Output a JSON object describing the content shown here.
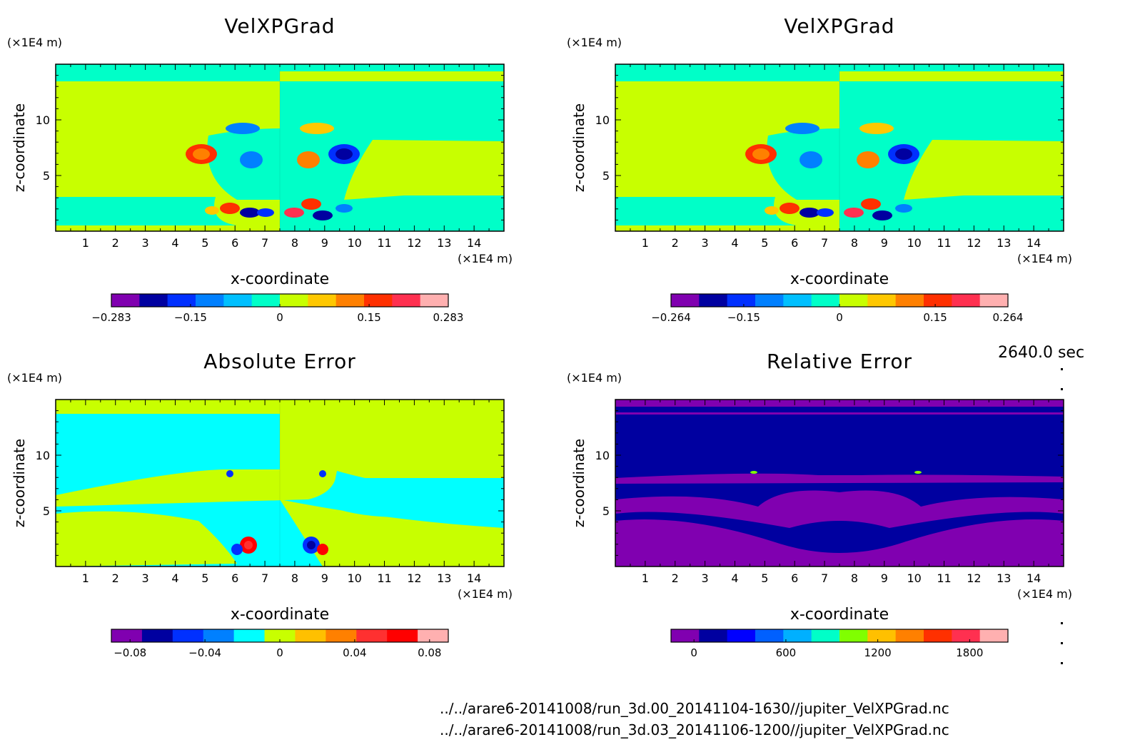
{
  "chart_data": [
    {
      "type": "heatmap",
      "title": "VelXPGrad",
      "xlabel": "x-coordinate",
      "ylabel": "z-coordinate",
      "x_unit": "(×1E4 m)",
      "y_unit": "(×1E4 m)",
      "xlim": [
        0,
        15
      ],
      "ylim": [
        0,
        15
      ],
      "x_ticks": [
        1,
        2,
        3,
        4,
        5,
        6,
        7,
        8,
        9,
        10,
        11,
        12,
        13,
        14
      ],
      "y_ticks": [
        5,
        10
      ],
      "colorbar": {
        "min": -0.283,
        "max": 0.283,
        "tick_labels": [
          "-0.283",
          "-0.15",
          "0",
          "0.15",
          "0.283"
        ],
        "colors": [
          "#8000b0",
          "#0000a0",
          "#0030ff",
          "#0080ff",
          "#00c0ff",
          "#00ffc8",
          "#c8ff00",
          "#ffc800",
          "#ff8000",
          "#ff3000",
          "#ff3050",
          "#ffb0b0"
        ]
      }
    },
    {
      "type": "heatmap",
      "title": "VelXPGrad",
      "xlabel": "x-coordinate",
      "ylabel": "z-coordinate",
      "x_unit": "(×1E4 m)",
      "y_unit": "(×1E4 m)",
      "xlim": [
        0,
        15
      ],
      "ylim": [
        0,
        15
      ],
      "x_ticks": [
        1,
        2,
        3,
        4,
        5,
        6,
        7,
        8,
        9,
        10,
        11,
        12,
        13,
        14
      ],
      "y_ticks": [
        5,
        10
      ],
      "colorbar": {
        "min": -0.264,
        "max": 0.264,
        "tick_labels": [
          "-0.264",
          "-0.15",
          "0",
          "0.15",
          "0.264"
        ],
        "colors": [
          "#8000b0",
          "#0000a0",
          "#0030ff",
          "#0080ff",
          "#00c0ff",
          "#00ffc8",
          "#c8ff00",
          "#ffc800",
          "#ff8000",
          "#ff3000",
          "#ff3050",
          "#ffb0b0"
        ]
      }
    },
    {
      "type": "heatmap",
      "title": "Absolute Error",
      "xlabel": "x-coordinate",
      "ylabel": "z-coordinate",
      "x_unit": "(×1E4 m)",
      "y_unit": "(×1E4 m)",
      "xlim": [
        0,
        15
      ],
      "ylim": [
        0,
        15
      ],
      "x_ticks": [
        1,
        2,
        3,
        4,
        5,
        6,
        7,
        8,
        9,
        10,
        11,
        12,
        13,
        14
      ],
      "y_ticks": [
        5,
        10
      ],
      "colorbar": {
        "min": -0.09,
        "max": 0.09,
        "tick_labels": [
          "-0.08",
          "-0.04",
          "0",
          "0.04",
          "0.08"
        ],
        "colors": [
          "#8000b0",
          "#0000a0",
          "#0030ff",
          "#0080ff",
          "#00ffff",
          "#c8ff00",
          "#ffc000",
          "#ff8000",
          "#ff3030",
          "#ff0000",
          "#ffb0b0"
        ]
      }
    },
    {
      "type": "heatmap",
      "title": "Relative Error",
      "xlabel": "x-coordinate",
      "ylabel": "z-coordinate",
      "x_unit": "(×1E4 m)",
      "y_unit": "(×1E4 m)",
      "xlim": [
        0,
        15
      ],
      "ylim": [
        0,
        15
      ],
      "x_ticks": [
        1,
        2,
        3,
        4,
        5,
        6,
        7,
        8,
        9,
        10,
        11,
        12,
        13,
        14
      ],
      "y_ticks": [
        5,
        10
      ],
      "colorbar": {
        "min": -150,
        "max": 2050,
        "tick_labels": [
          "0",
          "600",
          "1200",
          "1800"
        ],
        "colors": [
          "#8000b0",
          "#0000a0",
          "#0000ff",
          "#0060ff",
          "#00b0ff",
          "#00ffc8",
          "#80ff00",
          "#ffc000",
          "#ff8000",
          "#ff3000",
          "#ff3050",
          "#ffb0b0"
        ]
      }
    }
  ],
  "time_label": "2640.0 sec",
  "files": [
    "../../arare6-20141008/run_3d.00_20141104-1630//jupiter_VelXPGrad.nc",
    "../../arare6-20141008/run_3d.03_20141106-1200//jupiter_VelXPGrad.nc"
  ]
}
